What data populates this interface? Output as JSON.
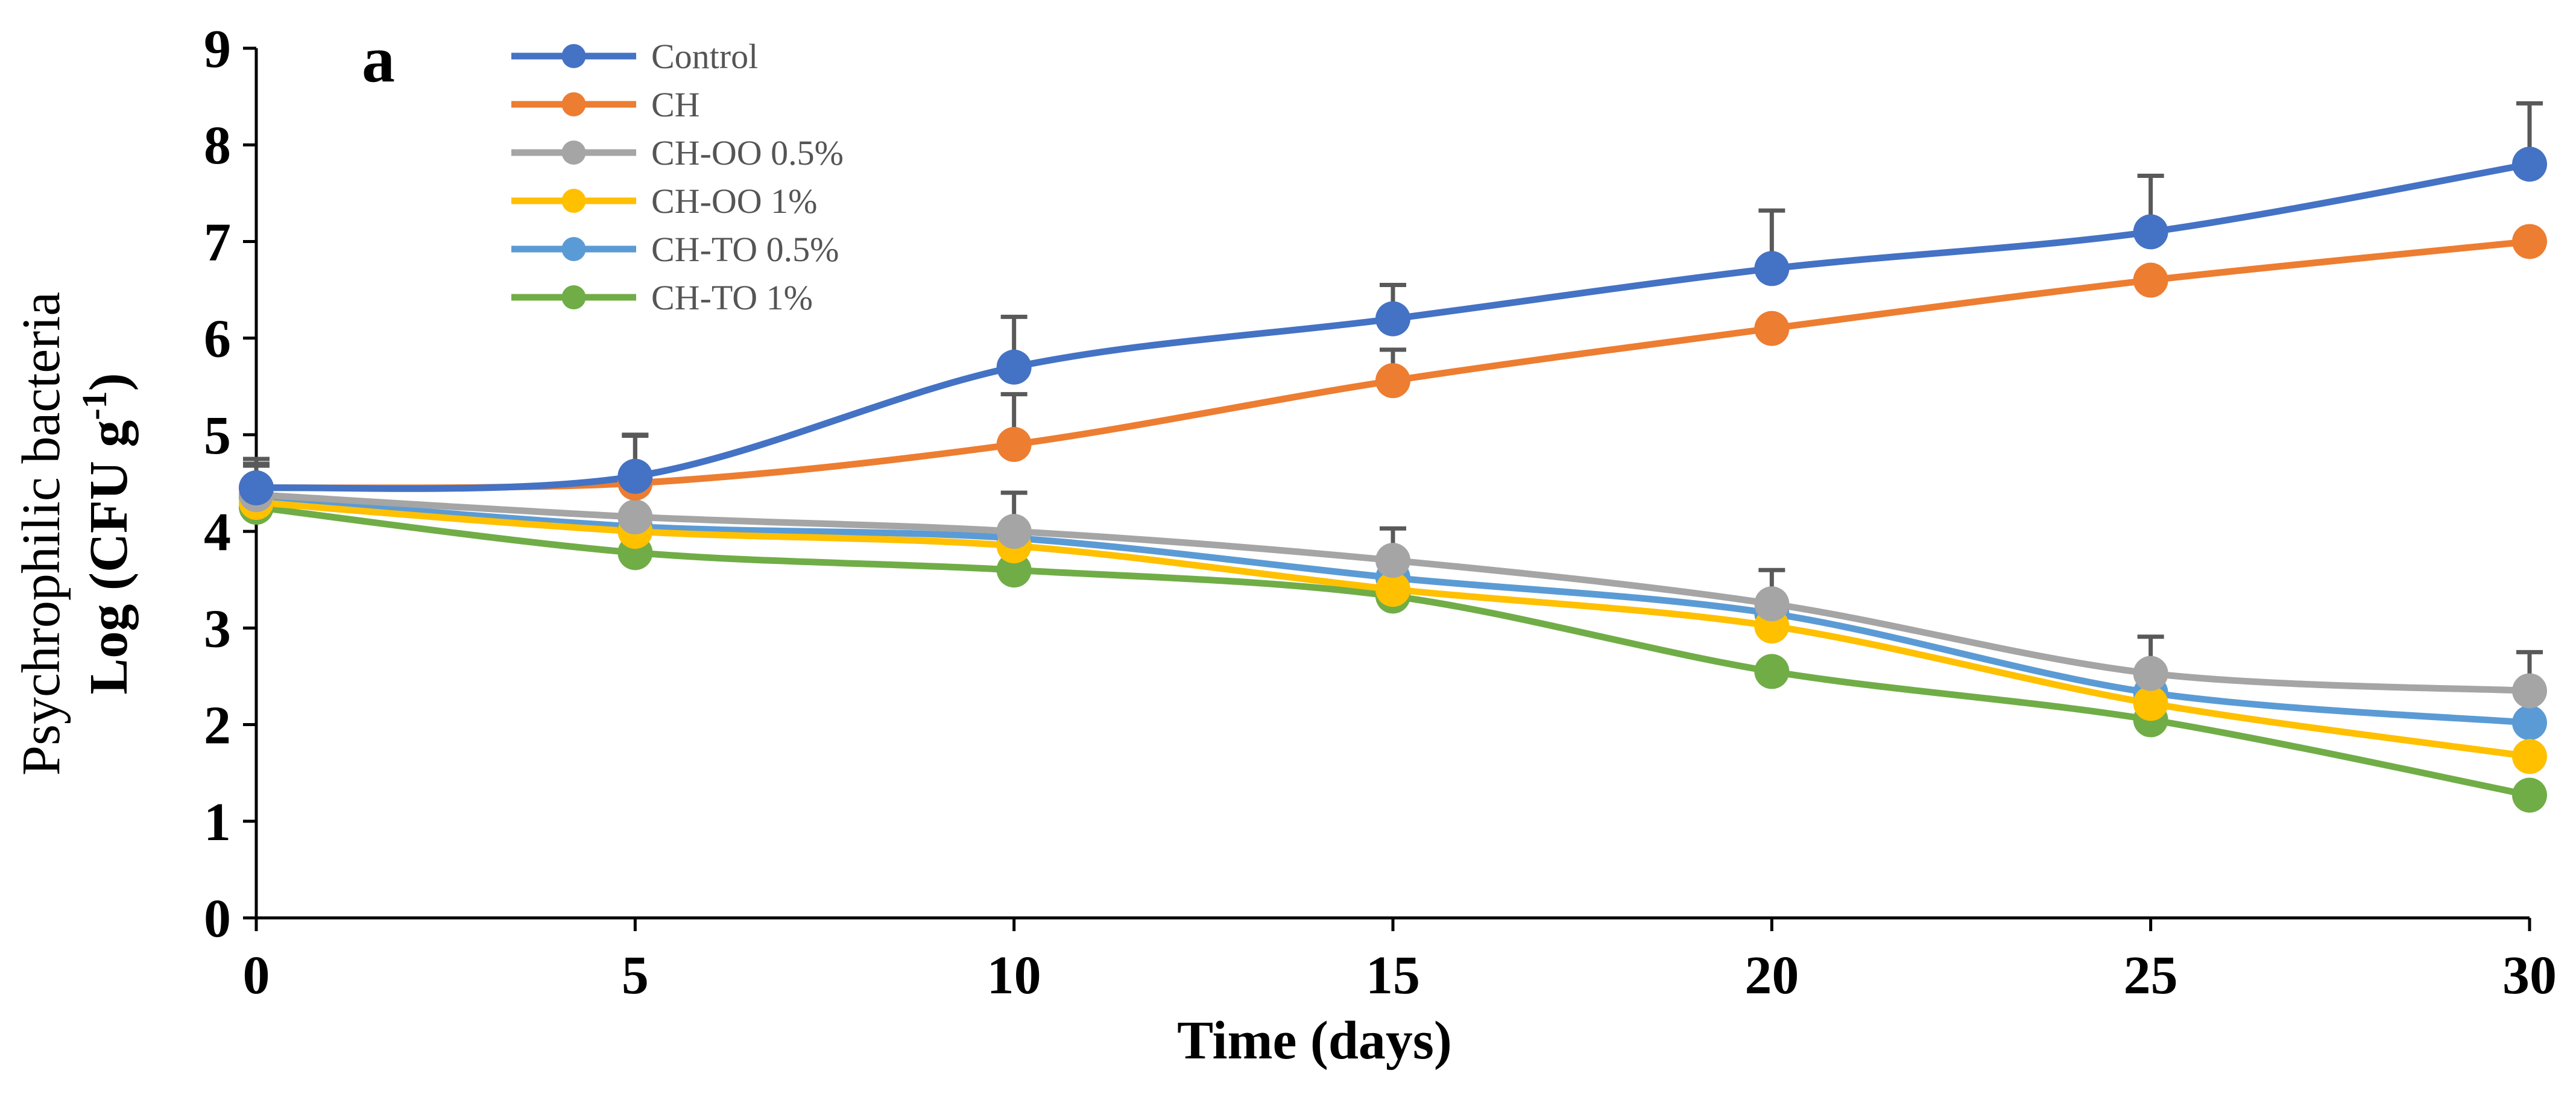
{
  "chart_data": {
    "type": "line",
    "panel_label": "a",
    "xlabel": "Time (days)",
    "ylabel_line1": "Psychrophilic bacteria",
    "ylabel_line2_main": "Log (CFU g",
    "ylabel_line2_sup": "-1",
    "ylabel_line2_end": ")",
    "x": [
      0,
      5,
      10,
      15,
      20,
      25,
      30
    ],
    "xticks": [
      "0",
      "5",
      "10",
      "15",
      "20",
      "25",
      "30"
    ],
    "yticks": [
      "0",
      "1",
      "2",
      "3",
      "4",
      "5",
      "6",
      "7",
      "8",
      "9"
    ],
    "xlim": [
      0,
      30
    ],
    "ylim": [
      0,
      9
    ],
    "legend_position": "top-left",
    "series": [
      {
        "name": "Control",
        "color": "#4472C4",
        "values": [
          4.45,
          4.57,
          5.7,
          6.2,
          6.72,
          7.1,
          7.8
        ],
        "errors": [
          0.3,
          0.42,
          0.52,
          0.35,
          0.6,
          0.58,
          0.63
        ]
      },
      {
        "name": "CH",
        "color": "#ED7D31",
        "values": [
          4.45,
          4.5,
          4.9,
          5.56,
          6.1,
          6.6,
          7.0
        ],
        "errors": [
          0.25,
          0.5,
          0.52,
          0.32,
          0.0,
          0.0,
          0.0
        ]
      },
      {
        "name": "CH-OO 0.5%",
        "color": "#A5A5A5",
        "values": [
          4.38,
          4.15,
          4.0,
          3.7,
          3.25,
          2.53,
          2.35
        ],
        "errors": [
          0.3,
          0.25,
          0.4,
          0.33,
          0.35,
          0.38,
          0.4
        ]
      },
      {
        "name": "CH-OO 1%",
        "color": "#FFC000",
        "values": [
          4.3,
          4.0,
          3.85,
          3.4,
          3.02,
          2.22,
          1.67
        ],
        "errors": [
          0.0,
          0.0,
          0.0,
          0.0,
          0.0,
          0.0,
          0.0
        ]
      },
      {
        "name": "CH-TO 0.5%",
        "color": "#5B9BD5",
        "values": [
          4.35,
          4.05,
          3.93,
          3.52,
          3.15,
          2.33,
          2.02
        ],
        "errors": [
          0.0,
          0.0,
          0.0,
          0.0,
          0.0,
          0.0,
          0.0
        ]
      },
      {
        "name": "CH-TO 1%",
        "color": "#70AD47",
        "values": [
          4.25,
          3.78,
          3.6,
          3.33,
          2.55,
          2.05,
          1.27
        ],
        "errors": [
          0.0,
          0.0,
          0.0,
          0.0,
          0.0,
          0.0,
          0.0
        ]
      }
    ]
  }
}
